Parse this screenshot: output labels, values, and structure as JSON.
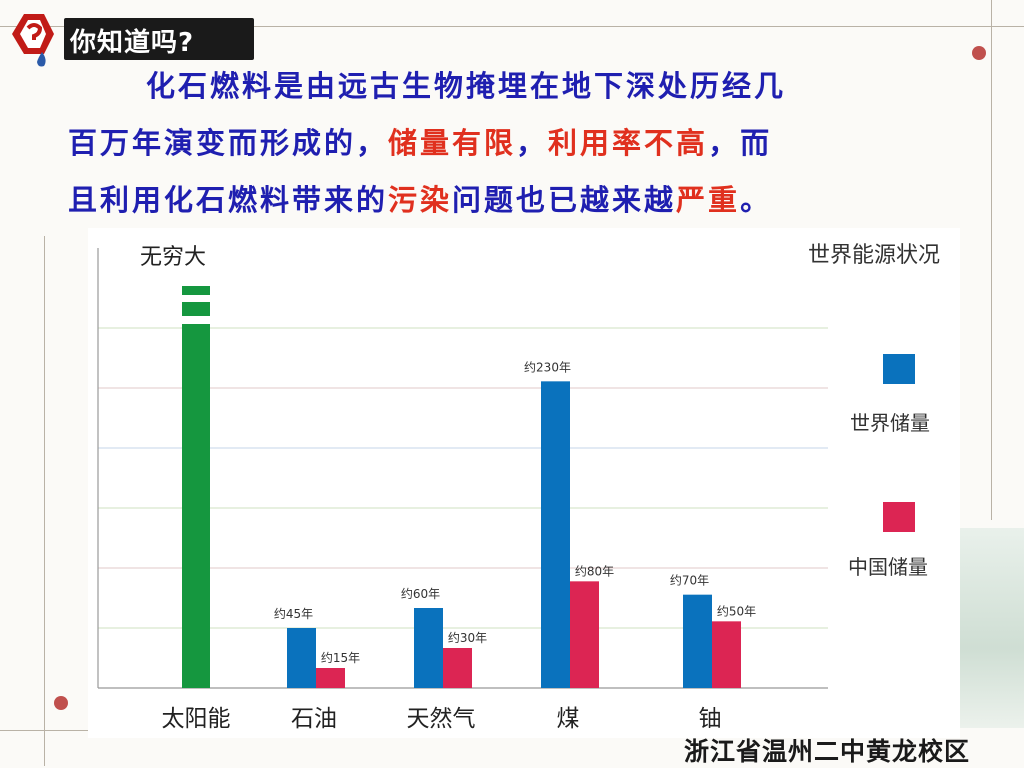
{
  "header": {
    "label": "你知道吗?"
  },
  "intro": {
    "line1": "化石燃料是由远古生物掩埋在地下深处历经几",
    "line2a": "百万年演变而形成的，",
    "line2b": "储量有限",
    "line2c": "，",
    "line2d": "利用率不高",
    "line2e": "，而",
    "line3a": "且利用化石燃料带来的",
    "line3b": "污染",
    "line3c": "问题也已越来越",
    "line3d": "严重",
    "line3e": "。"
  },
  "footer": {
    "school": "浙江省温州二中黄龙校区"
  },
  "colors": {
    "world": "#0a72bd",
    "china": "#dc2553",
    "solar": "#15973f",
    "highlight": "#e0301e",
    "text": "#1f1fb0"
  },
  "chart_data": {
    "type": "bar",
    "title": "世界能源状况",
    "top_label": "无穷大",
    "categories": [
      "太阳能",
      "石油",
      "天然气",
      "煤",
      "铀"
    ],
    "series": [
      {
        "name": "世界储量",
        "values": [
          null,
          45,
          60,
          230,
          70
        ],
        "labels": [
          "",
          "约45年",
          "约60年",
          "约230年",
          "约70年"
        ]
      },
      {
        "name": "中国储量",
        "values": [
          null,
          15,
          30,
          80,
          50
        ],
        "labels": [
          "",
          "约15年",
          "约30年",
          "约80年",
          "约50年"
        ]
      }
    ],
    "infinite": {
      "category": "太阳能",
      "label": "无穷大"
    },
    "ylim": [
      0,
      330
    ],
    "grid": true,
    "legend_position": "right"
  }
}
